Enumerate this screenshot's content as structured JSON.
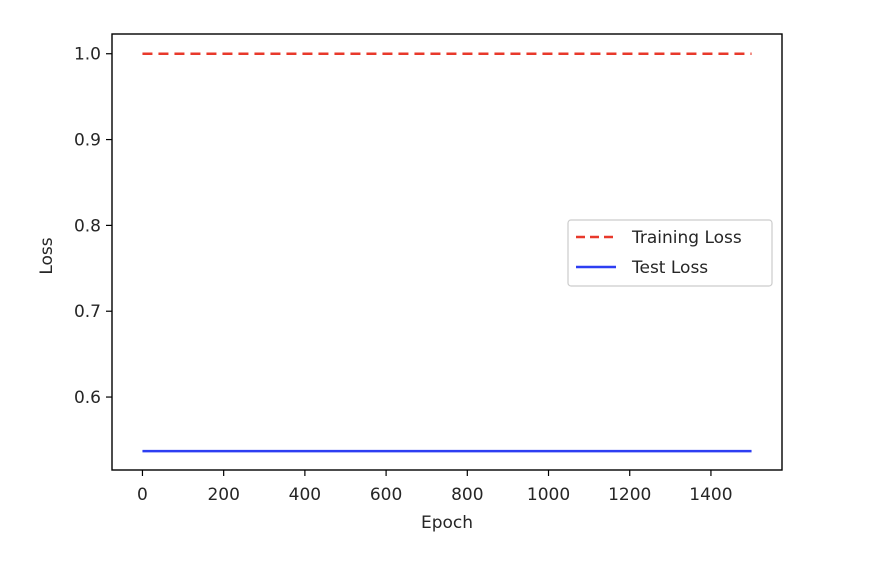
{
  "chart_data": {
    "type": "line",
    "title": "",
    "xlabel": "Epoch",
    "ylabel": "Loss",
    "xlim": [
      -75,
      1575
    ],
    "ylim": [
      0.515,
      1.023
    ],
    "x_ticks": [
      0,
      200,
      400,
      600,
      800,
      1000,
      1200,
      1400
    ],
    "x_tick_labels": [
      "0",
      "200",
      "400",
      "600",
      "800",
      "1000",
      "1200",
      "1400"
    ],
    "y_ticks": [
      0.6,
      0.7,
      0.8,
      0.9,
      1.0
    ],
    "y_tick_labels": [
      "0.6",
      "0.7",
      "0.8",
      "0.9",
      "1.0"
    ],
    "grid": false,
    "legend_position": "center-right",
    "series": [
      {
        "name": "Training Loss",
        "color": "#e8392b",
        "style": "dashed",
        "x": [
          0,
          1500
        ],
        "y": [
          1.0,
          1.0
        ]
      },
      {
        "name": "Test Loss",
        "color": "#2d3ef2",
        "style": "solid",
        "x": [
          0,
          1500
        ],
        "y": [
          0.537,
          0.537
        ]
      }
    ]
  }
}
